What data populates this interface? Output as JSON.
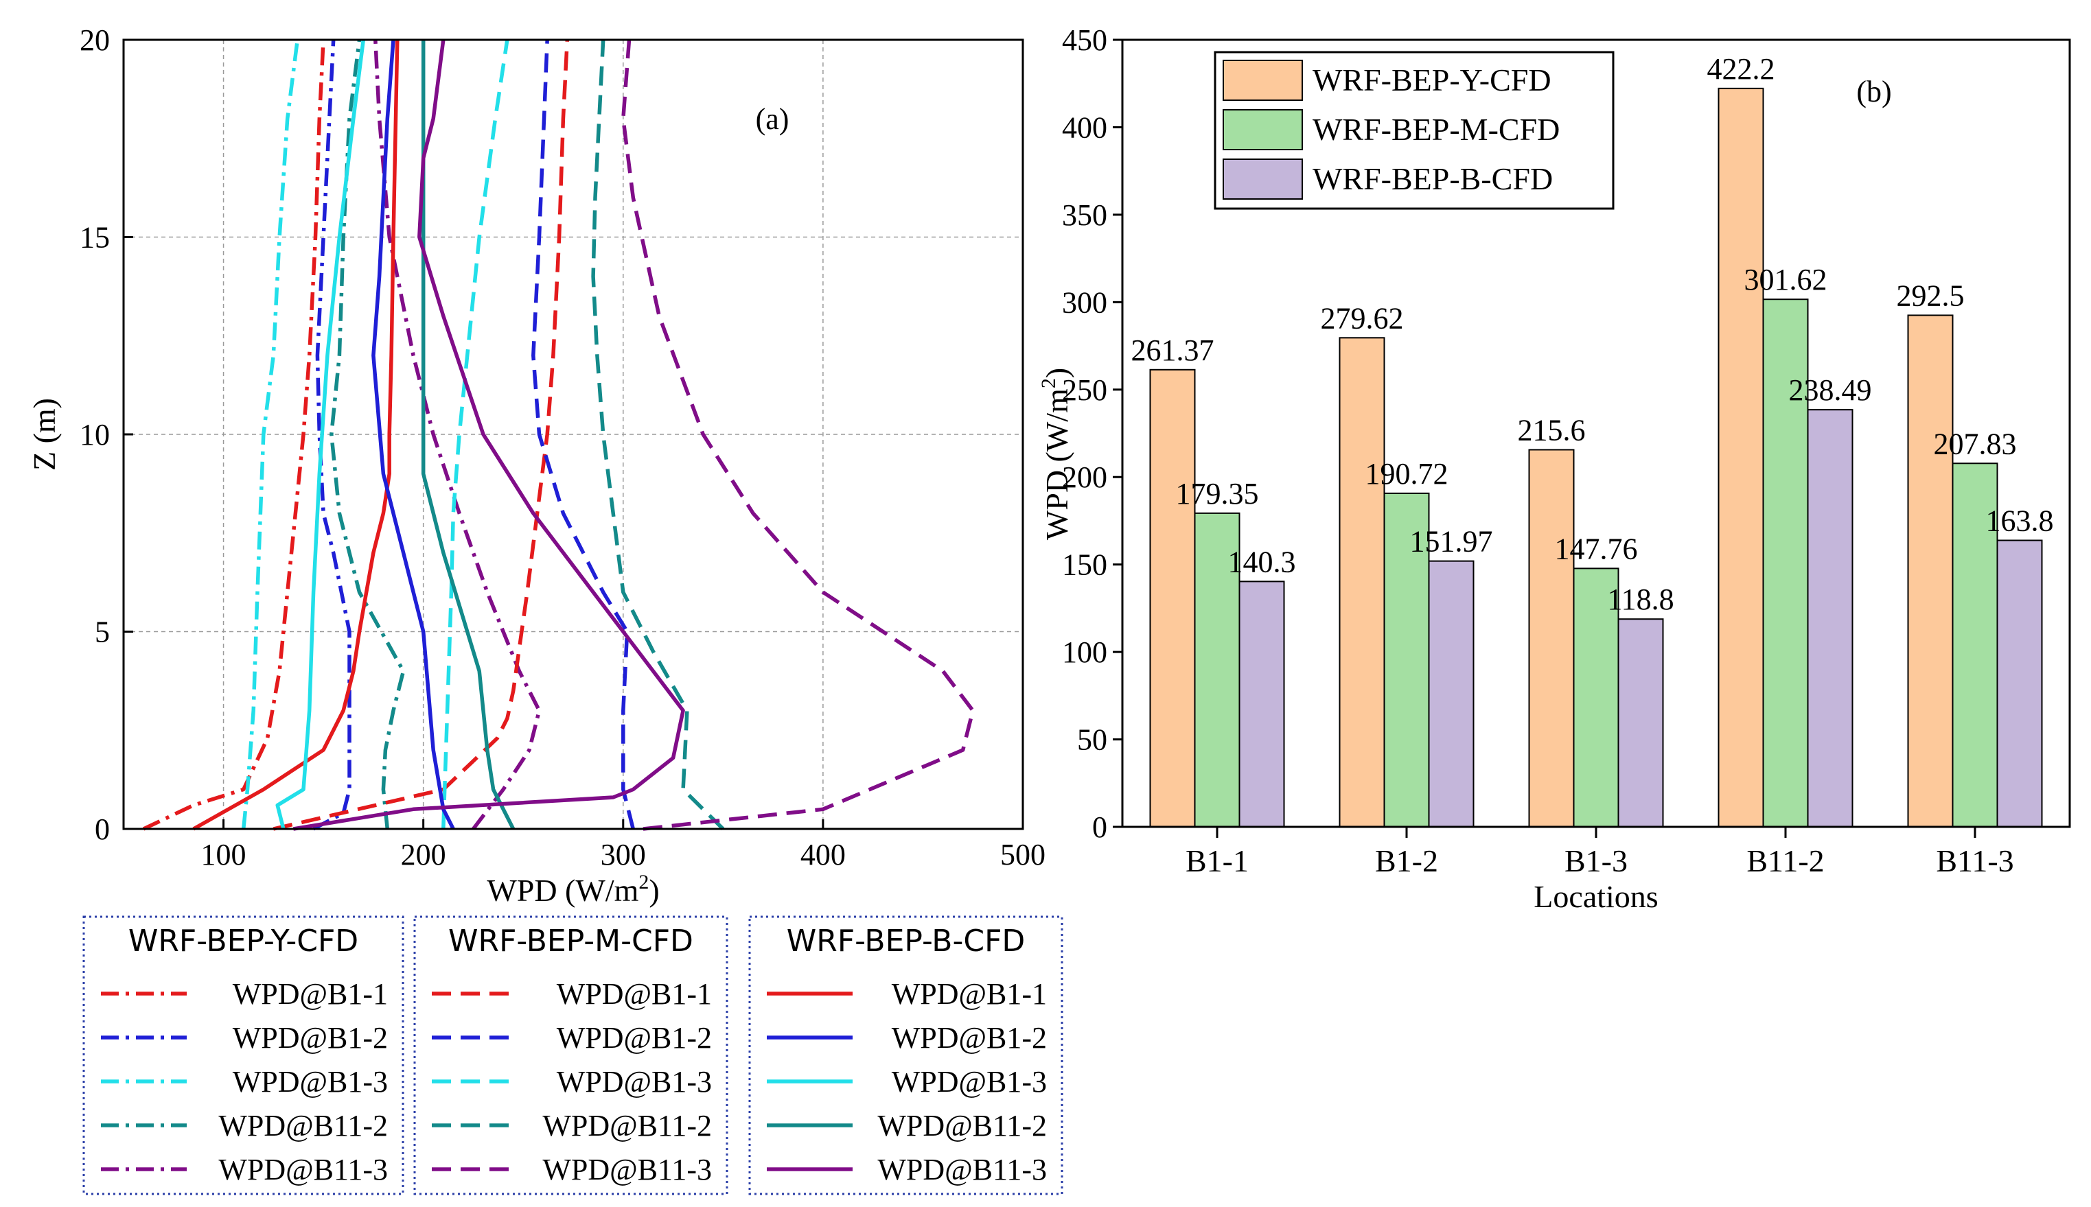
{
  "chart_data": [
    {
      "id": "a",
      "type": "line",
      "panel_label": "(a)",
      "xlabel": "WPD (W/m",
      "xlabel_sup": "2",
      "xlabel_close": ")",
      "ylabel": "Z (m)",
      "xlim": [
        50,
        500
      ],
      "ylim": [
        0,
        20
      ],
      "xticks": [
        "100",
        "200",
        "300",
        "400",
        "500"
      ],
      "xtick_values": [
        100,
        200,
        300,
        400,
        500
      ],
      "yticks": [
        "0",
        "5",
        "10",
        "15",
        "20"
      ],
      "ytick_values": [
        0,
        5,
        10,
        15,
        20
      ],
      "colors": {
        "B1-1": "#e41a1c",
        "B1-2": "#1f1fd6",
        "B1-3": "#22dfe9",
        "B11-2": "#138a8a",
        "B11-3": "#800d88"
      },
      "groups": [
        {
          "title": "WRF-BEP-Y-CFD",
          "dash": "dashdot",
          "series": [
            {
              "name": "WPD@B1-1",
              "loc": "B1-1",
              "x": [
                60,
                85,
                110,
                122,
                128,
                130,
                132,
                136,
                140,
                143,
                146,
                148,
                150
              ],
              "z": [
                0,
                0.6,
                1.0,
                2.3,
                4,
                5,
                6,
                8,
                10,
                12,
                15,
                18,
                20
              ]
            },
            {
              "name": "WPD@B1-2",
              "loc": "B1-2",
              "x": [
                145,
                160,
                163,
                163,
                155,
                150,
                148,
                147,
                148,
                150,
                153,
                155
              ],
              "z": [
                0,
                0.4,
                1.0,
                5,
                7,
                8,
                10,
                12,
                13,
                15,
                18,
                20
              ]
            },
            {
              "name": "WPD@B1-3",
              "loc": "B1-3",
              "x": [
                110,
                112,
                115,
                117,
                120,
                125,
                128,
                132,
                137
              ],
              "z": [
                0,
                1,
                3,
                6,
                10,
                12,
                15,
                18,
                20
              ]
            },
            {
              "name": "WPD@B11-2",
              "loc": "B11-2",
              "x": [
                182,
                180,
                181,
                185,
                190,
                168,
                158,
                154,
                158,
                160,
                163,
                168
              ],
              "z": [
                0,
                1,
                2,
                3,
                4,
                6,
                8,
                10,
                12,
                15,
                18,
                20
              ]
            },
            {
              "name": "WPD@B11-3",
              "loc": "B11-3",
              "x": [
                225,
                240,
                253,
                258,
                248,
                232,
                218,
                205,
                195,
                183,
                178,
                176
              ],
              "z": [
                0,
                1,
                2,
                3,
                4,
                6,
                8,
                10,
                12,
                15,
                18,
                20
              ]
            }
          ]
        },
        {
          "title": "WRF-BEP-M-CFD",
          "dash": "dash",
          "series": [
            {
              "name": "WPD@B1-1",
              "loc": "B1-1",
              "x": [
                125,
                210,
                237,
                242,
                245,
                252,
                262,
                265,
                268,
                270,
                272
              ],
              "z": [
                0,
                1,
                2.3,
                2.8,
                3.5,
                6,
                10,
                12,
                15,
                18,
                20
              ]
            },
            {
              "name": "WPD@B1-2",
              "loc": "B1-2",
              "x": [
                305,
                300,
                300,
                302,
                290,
                270,
                258,
                255,
                258,
                262
              ],
              "z": [
                0,
                1,
                3,
                5,
                6,
                8,
                10,
                12,
                15,
                20
              ]
            },
            {
              "name": "WPD@B1-3",
              "loc": "B1-3",
              "x": [
                210,
                212,
                214,
                215,
                218,
                222,
                228,
                236,
                242
              ],
              "z": [
                0,
                3,
                6,
                8,
                10,
                12,
                15,
                18,
                20
              ]
            },
            {
              "name": "WPD@B11-2",
              "loc": "B11-2",
              "x": [
                350,
                330,
                332,
                315,
                300,
                295,
                290,
                287,
                285,
                286,
                288,
                290
              ],
              "z": [
                0,
                1,
                3,
                4.5,
                6,
                8,
                10,
                12,
                14,
                16,
                18,
                20
              ]
            },
            {
              "name": "WPD@B11-3",
              "loc": "B11-3",
              "x": [
                310,
                400,
                470,
                475,
                460,
                400,
                365,
                340,
                318,
                305,
                300,
                303
              ],
              "z": [
                0,
                0.5,
                2,
                3,
                4,
                6,
                8,
                10,
                13,
                16,
                18,
                20
              ]
            }
          ]
        },
        {
          "title": "WRF-BEP-B-CFD",
          "dash": "solid",
          "series": [
            {
              "name": "WPD@B1-1",
              "loc": "B1-1",
              "x": [
                85,
                120,
                150,
                160,
                165,
                168,
                175,
                180,
                183,
                183,
                184,
                185,
                187
              ],
              "z": [
                0,
                1,
                2,
                3,
                4,
                5,
                7,
                8,
                9,
                10,
                12,
                15,
                20
              ]
            },
            {
              "name": "WPD@B1-2",
              "loc": "B1-2",
              "x": [
                215,
                210,
                205,
                200,
                190,
                180,
                175,
                178,
                180,
                182,
                185
              ],
              "z": [
                0,
                0.5,
                2,
                5,
                7,
                9,
                12,
                14,
                16,
                18,
                20
              ]
            },
            {
              "name": "WPD@B1-3",
              "loc": "B1-3",
              "x": [
                130,
                127,
                140,
                143,
                145,
                148,
                152,
                158,
                165,
                170
              ],
              "z": [
                0,
                0.6,
                1,
                3,
                6,
                9,
                12,
                15,
                18,
                20
              ]
            },
            {
              "name": "WPD@B11-2",
              "loc": "B11-2",
              "x": [
                245,
                235,
                232,
                228,
                210,
                200,
                200,
                200,
                200,
                200,
                200
              ],
              "z": [
                0,
                1,
                2,
                4,
                7,
                9,
                10,
                12,
                15,
                18,
                20
              ]
            },
            {
              "name": "WPD@B11-3",
              "loc": "B11-3",
              "x": [
                135,
                195,
                295,
                305,
                325,
                330,
                300,
                255,
                230,
                210,
                198,
                200,
                205,
                210
              ],
              "z": [
                0,
                0.5,
                0.8,
                1,
                1.8,
                3,
                5,
                8,
                10,
                13,
                15,
                17,
                18,
                20
              ]
            }
          ]
        }
      ]
    },
    {
      "id": "b",
      "type": "bar",
      "panel_label": "(b)",
      "xlabel": "Locations",
      "ylabel": "WPD (W/m",
      "ylabel_sup": "2",
      "ylabel_close": ")",
      "ylim": [
        0,
        450
      ],
      "yticks": [
        "0",
        "50",
        "100",
        "150",
        "200",
        "250",
        "300",
        "350",
        "400",
        "450"
      ],
      "ytick_values": [
        0,
        50,
        100,
        150,
        200,
        250,
        300,
        350,
        400,
        450
      ],
      "categories": [
        "B1-1",
        "B1-2",
        "B1-3",
        "B11-2",
        "B11-3"
      ],
      "series": [
        {
          "name": "WRF-BEP-Y-CFD",
          "color": "#fdc99b",
          "values": [
            261.37,
            279.62,
            215.6,
            422.2,
            292.5
          ],
          "labels": [
            "261.37",
            "279.62",
            "215.6",
            "422.2",
            "292.5"
          ]
        },
        {
          "name": "WRF-BEP-M-CFD",
          "color": "#a4dfa2",
          "values": [
            179.35,
            190.72,
            147.76,
            301.62,
            207.83
          ],
          "labels": [
            "179.35",
            "190.72",
            "147.76",
            "301.62",
            "207.83"
          ]
        },
        {
          "name": "WRF-BEP-B-CFD",
          "color": "#c4b6da",
          "values": [
            140.3,
            151.97,
            118.8,
            238.49,
            163.8
          ],
          "labels": [
            "140.3",
            "151.97",
            "118.8",
            "238.49",
            "163.8"
          ]
        }
      ]
    }
  ]
}
